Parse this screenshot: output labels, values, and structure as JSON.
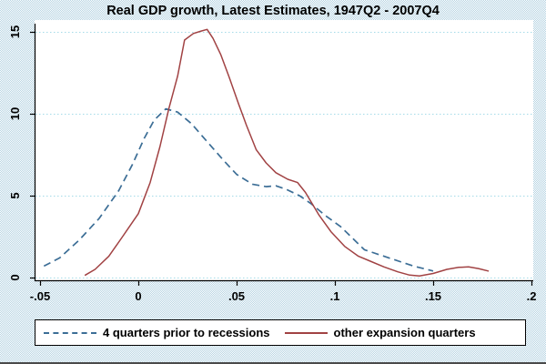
{
  "title": "Real GDP growth, Latest Estimates, 1947Q2 - 2007Q4",
  "legend": {
    "items": [
      {
        "label": "4 quarters prior to recessions",
        "line_style": "dashed",
        "color": "#3c6e96"
      },
      {
        "label": "other expansion quarters",
        "line_style": "solid",
        "color": "#a14243"
      }
    ]
  },
  "x_axis": {
    "tick_labels": [
      "-.05",
      "0",
      ".05",
      ".1",
      ".15",
      ".2"
    ],
    "range": [
      -0.05,
      0.2
    ]
  },
  "y_axis": {
    "tick_labels": [
      "0",
      "5",
      "10",
      "15"
    ],
    "range": [
      0,
      15
    ]
  },
  "colors": {
    "plot_background": "#ffffff",
    "page_background_dot": "#b5d3e2",
    "gridline": "#a5dbe8",
    "axis": "#000000",
    "series_recessions": "#3c6e96",
    "series_expansions": "#a14243"
  },
  "chart_data": {
    "type": "line",
    "title": "Real GDP growth, Latest Estimates, 1947Q2 - 2007Q4",
    "xlabel": "",
    "ylabel": "",
    "xlim": [
      -0.05,
      0.2
    ],
    "ylim": [
      0,
      15
    ],
    "grid": "horizontal dotted lines at y = 0, 5, 10, 15",
    "legend_position": "bottom",
    "series": [
      {
        "name": "4 quarters prior to recessions",
        "line_style": "dashed",
        "color": "#3c6e96",
        "points": [
          [
            -0.048,
            0.7
          ],
          [
            -0.04,
            1.2
          ],
          [
            -0.03,
            2.3
          ],
          [
            -0.02,
            3.6
          ],
          [
            -0.01,
            5.3
          ],
          [
            -0.003,
            6.9
          ],
          [
            0.003,
            8.5
          ],
          [
            0.008,
            9.6
          ],
          [
            0.014,
            10.3
          ],
          [
            0.02,
            10.1
          ],
          [
            0.027,
            9.4
          ],
          [
            0.035,
            8.3
          ],
          [
            0.043,
            7.2
          ],
          [
            0.05,
            6.3
          ],
          [
            0.058,
            5.7
          ],
          [
            0.065,
            5.55
          ],
          [
            0.07,
            5.6
          ],
          [
            0.075,
            5.4
          ],
          [
            0.082,
            5.0
          ],
          [
            0.088,
            4.5
          ],
          [
            0.095,
            3.8
          ],
          [
            0.103,
            3.1
          ],
          [
            0.115,
            1.7
          ],
          [
            0.13,
            1.1
          ],
          [
            0.14,
            0.7
          ],
          [
            0.15,
            0.4
          ]
        ]
      },
      {
        "name": "other expansion quarters",
        "line_style": "solid",
        "color": "#a14243",
        "points": [
          [
            -0.027,
            0.15
          ],
          [
            -0.022,
            0.5
          ],
          [
            -0.015,
            1.3
          ],
          [
            -0.008,
            2.5
          ],
          [
            0.0,
            3.9
          ],
          [
            0.006,
            5.8
          ],
          [
            0.011,
            8.0
          ],
          [
            0.0155,
            10.3
          ],
          [
            0.02,
            12.3
          ],
          [
            0.0235,
            14.5
          ],
          [
            0.028,
            14.9
          ],
          [
            0.032,
            15.05
          ],
          [
            0.035,
            15.15
          ],
          [
            0.038,
            14.6
          ],
          [
            0.042,
            13.6
          ],
          [
            0.046,
            12.3
          ],
          [
            0.051,
            10.6
          ],
          [
            0.055,
            9.3
          ],
          [
            0.06,
            7.8
          ],
          [
            0.065,
            7.0
          ],
          [
            0.07,
            6.4
          ],
          [
            0.076,
            6.0
          ],
          [
            0.081,
            5.8
          ],
          [
            0.085,
            5.2
          ],
          [
            0.088,
            4.6
          ],
          [
            0.092,
            3.8
          ],
          [
            0.098,
            2.8
          ],
          [
            0.105,
            1.9
          ],
          [
            0.112,
            1.3
          ],
          [
            0.118,
            1.0
          ],
          [
            0.125,
            0.65
          ],
          [
            0.132,
            0.35
          ],
          [
            0.138,
            0.15
          ],
          [
            0.143,
            0.1
          ],
          [
            0.15,
            0.25
          ],
          [
            0.157,
            0.5
          ],
          [
            0.163,
            0.62
          ],
          [
            0.168,
            0.65
          ],
          [
            0.173,
            0.55
          ],
          [
            0.178,
            0.4
          ]
        ]
      }
    ]
  }
}
